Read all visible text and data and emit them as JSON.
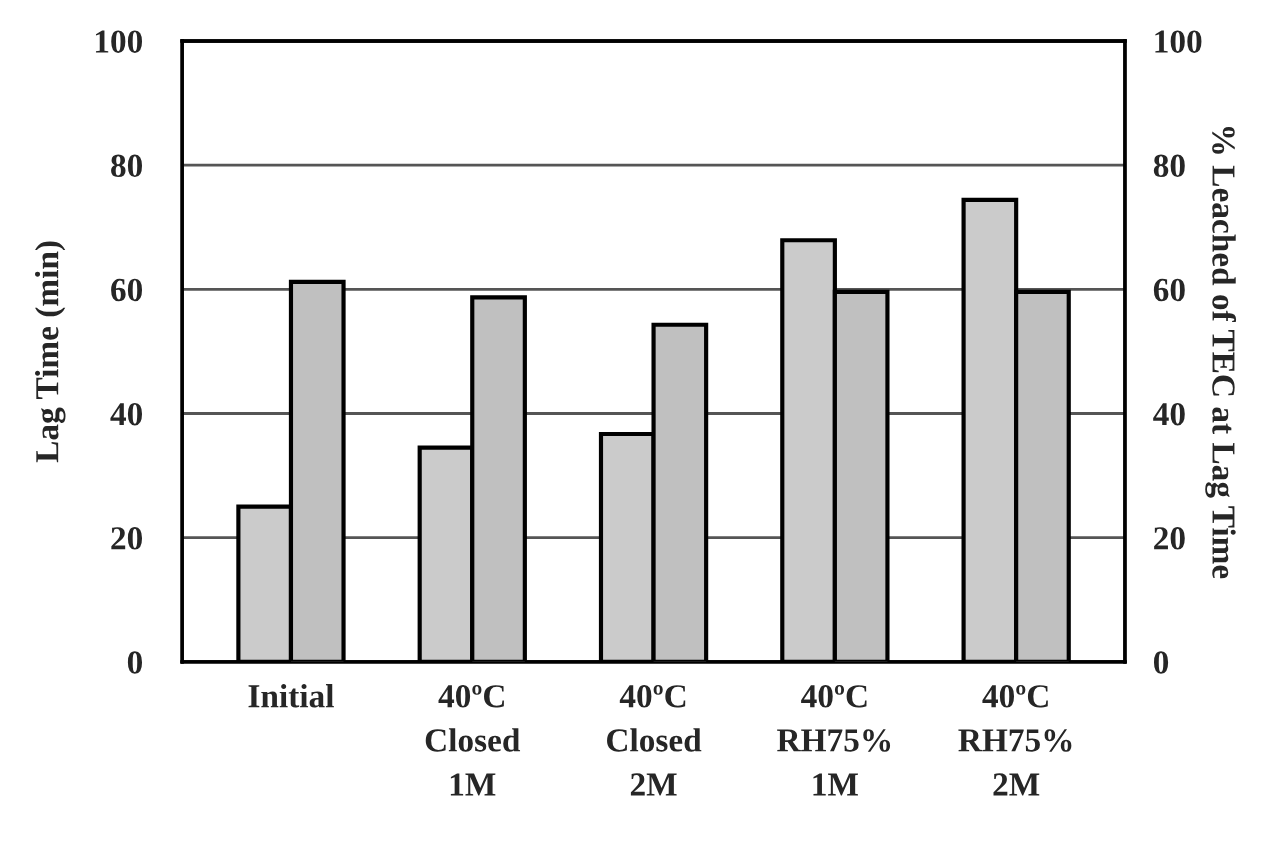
{
  "chart_data": {
    "type": "bar",
    "categories": [
      "Initial",
      "40ºC\nClosed\n1M",
      "40ºC\nClosed\n2M",
      "40ºC\nRH75%\n1M",
      "40ºC\nRH75%\n2M"
    ],
    "series": [
      {
        "color": "#cbcbcb",
        "values": [
          25,
          34.5,
          36.7,
          67.9,
          74.4
        ]
      },
      {
        "color": "#c0c0c0",
        "values": [
          61.2,
          58.7,
          54.3,
          59.6,
          59.6
        ],
        "axis": "y2"
      }
    ],
    "ylabel": "Lag Time (min)",
    "y2label": "% Leached of TEC at Lag Time",
    "ylim": [
      0,
      100
    ],
    "yticks": [
      0,
      20,
      40,
      60,
      80,
      100
    ],
    "y2lim": [
      0,
      100
    ],
    "y2ticks": [
      0,
      20,
      40,
      60,
      80,
      100
    ],
    "grid": "y"
  }
}
